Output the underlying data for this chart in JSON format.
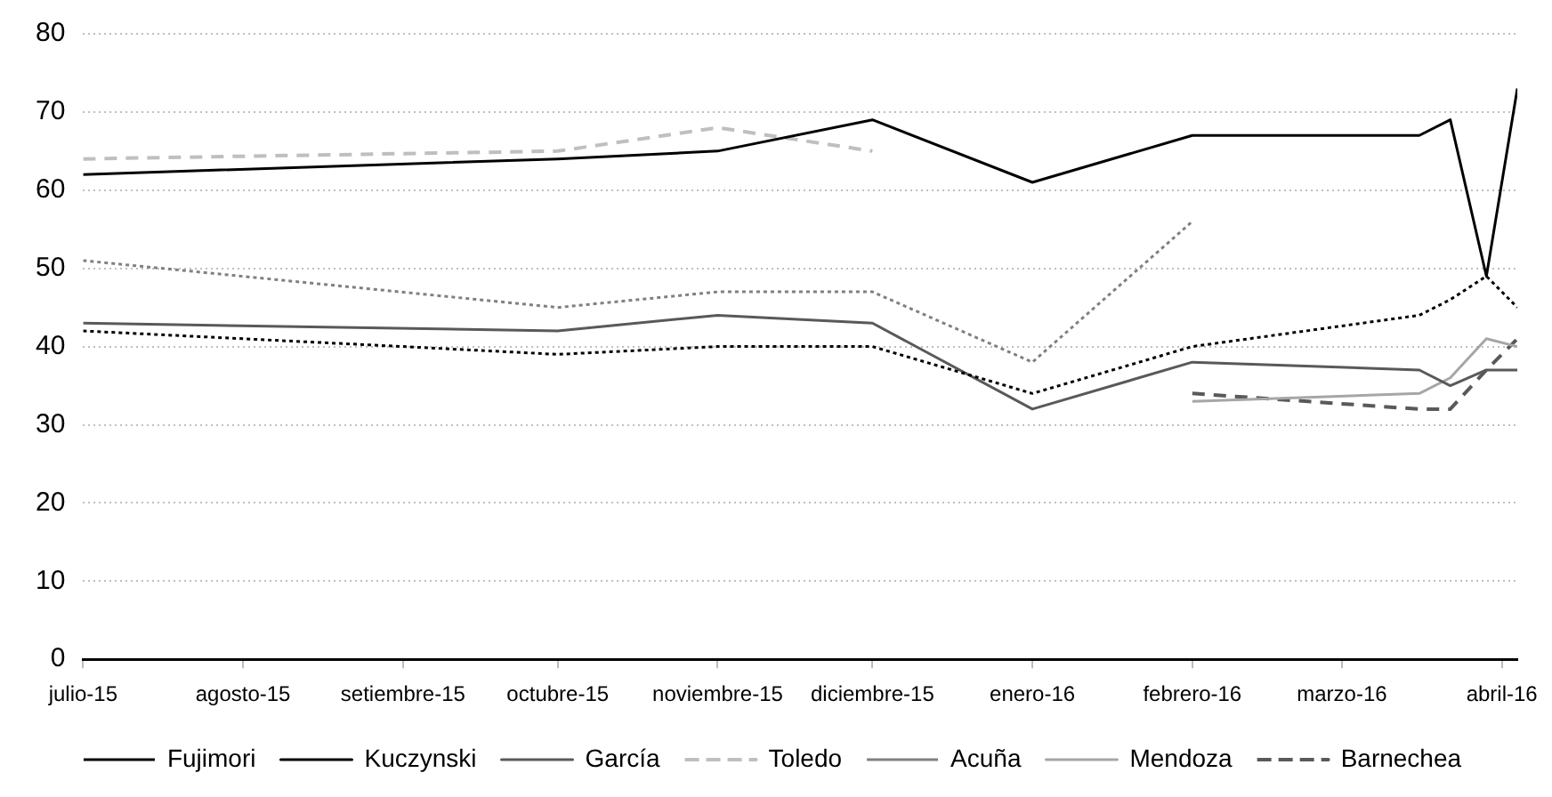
{
  "chart_data": {
    "type": "line",
    "xlim": [
      "2015-07-01",
      "2016-04-04"
    ],
    "xticks": [
      {
        "value": "2015-07-01",
        "label": "julio-15"
      },
      {
        "value": "2015-08-01",
        "label": "agosto-15"
      },
      {
        "value": "2015-09-01",
        "label": "setiembre-15"
      },
      {
        "value": "2015-10-01",
        "label": "octubre-15"
      },
      {
        "value": "2015-11-01",
        "label": "noviembre-15"
      },
      {
        "value": "2015-12-01",
        "label": "diciembre-15"
      },
      {
        "value": "2016-01-01",
        "label": "enero-16"
      },
      {
        "value": "2016-02-01",
        "label": "febrero-16"
      },
      {
        "value": "2016-03-01",
        "label": "marzo-16"
      },
      {
        "value": "2016-04-01",
        "label": "abril-16"
      }
    ],
    "ylim": [
      0,
      80
    ],
    "yticks": [
      0,
      10,
      20,
      30,
      40,
      50,
      60,
      70,
      80
    ],
    "grid": "y",
    "legend": "bottom",
    "marker": "none",
    "series": [
      {
        "name": "Fujimori",
        "color": "#000000",
        "line_style": "dotted",
        "x": [
          "2015-07-01",
          "2015-09-01",
          "2015-10-01",
          "2015-11-01",
          "2015-12-01",
          "2016-01-01",
          "2016-02-01",
          "2016-03-16",
          "2016-03-22",
          "2016-03-29",
          "2016-04-04"
        ],
        "values": [
          42,
          40,
          39,
          40,
          40,
          34,
          40,
          44,
          46,
          49,
          45
        ]
      },
      {
        "name": "Kuczynski",
        "color": "#000000",
        "line_style": "solid",
        "x": [
          "2015-07-01",
          "2015-10-01",
          "2015-11-01",
          "2015-12-01",
          "2016-01-01",
          "2016-02-01",
          "2016-03-16",
          "2016-03-22",
          "2016-03-29",
          "2016-04-04"
        ],
        "values": [
          62,
          64,
          65,
          69,
          61,
          67,
          67,
          69,
          49,
          73
        ]
      },
      {
        "name": "García",
        "color": "#595959",
        "line_style": "solid",
        "x": [
          "2015-07-01",
          "2015-10-01",
          "2015-11-01",
          "2015-12-01",
          "2016-01-01",
          "2016-02-01",
          "2016-03-16",
          "2016-03-22",
          "2016-03-29",
          "2016-04-04"
        ],
        "values": [
          43,
          42,
          44,
          43,
          32,
          38,
          37,
          35,
          37,
          37
        ]
      },
      {
        "name": "Toledo",
        "color": "#bfbfbf",
        "line_style": "dashed",
        "x": [
          "2015-07-01",
          "2015-10-01",
          "2015-11-01",
          "2015-12-01"
        ],
        "values": [
          64,
          65,
          68,
          65
        ]
      },
      {
        "name": "Acuña",
        "color": "#808080",
        "line_style": "dotted",
        "x": [
          "2015-07-01",
          "2015-10-01",
          "2015-11-01",
          "2015-12-01",
          "2016-01-01",
          "2016-02-01"
        ],
        "values": [
          51,
          45,
          47,
          47,
          38,
          56
        ]
      },
      {
        "name": "Mendoza",
        "color": "#a6a6a6",
        "line_style": "solid",
        "x": [
          "2016-02-01",
          "2016-03-16",
          "2016-03-22",
          "2016-03-29",
          "2016-04-04"
        ],
        "values": [
          33,
          34,
          36,
          41,
          40
        ]
      },
      {
        "name": "Barnechea",
        "color": "#595959",
        "line_style": "dashed",
        "x": [
          "2016-02-01",
          "2016-03-16",
          "2016-03-22",
          "2016-03-29",
          "2016-04-04"
        ],
        "values": [
          34,
          32,
          32,
          37,
          41
        ]
      }
    ]
  }
}
